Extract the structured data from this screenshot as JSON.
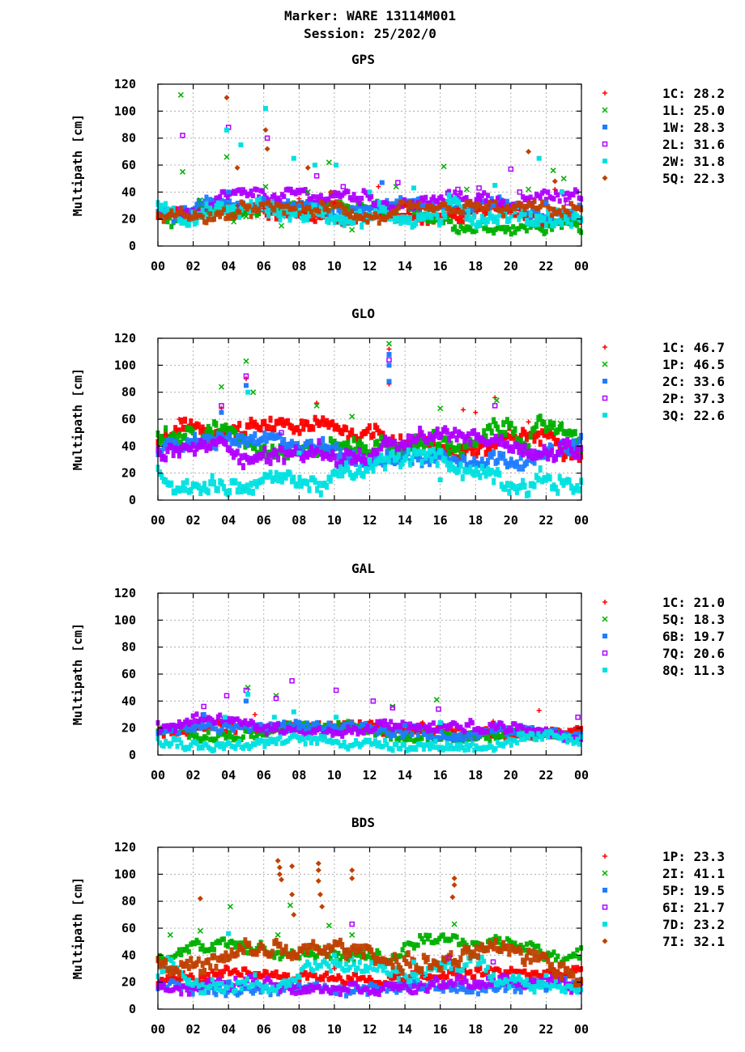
{
  "header": {
    "line1": "Marker: WARE 13114M001",
    "line2": "Session: 25/202/0"
  },
  "ylabel": "Multipath [cm]",
  "x_ticks": [
    "00",
    "02",
    "04",
    "06",
    "08",
    "10",
    "12",
    "14",
    "16",
    "18",
    "20",
    "22",
    "00"
  ],
  "y_ticks": [
    "0",
    "20",
    "40",
    "60",
    "80",
    "100",
    "120"
  ],
  "chart_data": [
    {
      "type": "scatter",
      "title": "GPS",
      "ylabel": "Multipath [cm]",
      "xlim": [
        0,
        24
      ],
      "ylim": [
        0,
        120
      ],
      "grid": true,
      "legend_position": "right",
      "series": [
        {
          "name": "1C",
          "label": "1C: 28.2",
          "color": "#ff0000",
          "marker": "plus",
          "rms": 28.2,
          "points": [
            [
              4.5,
              30
            ],
            [
              6.0,
              28
            ],
            [
              8.0,
              35
            ],
            [
              10.0,
              32
            ],
            [
              12.5,
              44
            ],
            [
              14.0,
              30
            ],
            [
              17.0,
              28
            ],
            [
              20.0,
              25
            ],
            [
              22.5,
              42
            ]
          ]
        },
        {
          "name": "1L",
          "label": "1L: 25.0",
          "color": "#00b000",
          "marker": "cross",
          "rms": 25.0,
          "points": [
            [
              1.3,
              112
            ],
            [
              1.4,
              55
            ],
            [
              2.4,
              34
            ],
            [
              3.9,
              66
            ],
            [
              4.3,
              18
            ],
            [
              5.0,
              22
            ],
            [
              6.1,
              44
            ],
            [
              7.0,
              15
            ],
            [
              8.5,
              40
            ],
            [
              9.7,
              62
            ],
            [
              11.0,
              12
            ],
            [
              13.5,
              44
            ],
            [
              16.2,
              59
            ],
            [
              17.5,
              42
            ],
            [
              21.0,
              42
            ],
            [
              22.4,
              56
            ],
            [
              23.0,
              50
            ]
          ]
        },
        {
          "name": "1W",
          "label": "1W: 28.3",
          "color": "#1e7cff",
          "marker": "square",
          "rms": 28.3,
          "points": [
            [
              4.0,
              40
            ],
            [
              6.0,
              35
            ],
            [
              8.0,
              30
            ],
            [
              12.7,
              47
            ],
            [
              15.0,
              30
            ],
            [
              19.0,
              30
            ],
            [
              22.0,
              32
            ]
          ]
        },
        {
          "name": "2L",
          "label": "2L: 31.6",
          "color": "#b000ff",
          "marker": "open-square",
          "rms": 31.6,
          "points": [
            [
              1.4,
              82
            ],
            [
              4.0,
              88
            ],
            [
              6.2,
              80
            ],
            [
              7.5,
              42
            ],
            [
              9.0,
              52
            ],
            [
              10.5,
              44
            ],
            [
              13.6,
              47
            ],
            [
              17.0,
              42
            ],
            [
              18.2,
              43
            ],
            [
              20.0,
              57
            ],
            [
              20.5,
              40
            ],
            [
              23.2,
              32
            ]
          ]
        },
        {
          "name": "2W",
          "label": "2W: 31.8",
          "color": "#00e0e0",
          "marker": "square",
          "rms": 31.8,
          "points": [
            [
              3.9,
              86
            ],
            [
              4.7,
              75
            ],
            [
              6.1,
              102
            ],
            [
              7.7,
              65
            ],
            [
              8.9,
              60
            ],
            [
              10.1,
              60
            ],
            [
              12.0,
              40
            ],
            [
              14.5,
              43
            ],
            [
              16.5,
              38
            ],
            [
              19.1,
              45
            ],
            [
              21.6,
              65
            ],
            [
              22.9,
              40
            ]
          ]
        },
        {
          "name": "5Q",
          "label": "5Q: 22.3",
          "color": "#c04000",
          "marker": "diamond",
          "rms": 22.3,
          "points": [
            [
              3.9,
              110
            ],
            [
              4.5,
              58
            ],
            [
              6.1,
              86
            ],
            [
              6.2,
              72
            ],
            [
              8.5,
              58
            ],
            [
              9.8,
              40
            ],
            [
              21.0,
              70
            ],
            [
              22.5,
              48
            ]
          ]
        }
      ]
    },
    {
      "type": "scatter",
      "title": "GLO",
      "ylabel": "Multipath [cm]",
      "xlim": [
        0,
        24
      ],
      "ylim": [
        0,
        120
      ],
      "grid": true,
      "legend_position": "right",
      "series": [
        {
          "name": "1C",
          "label": "1C: 46.7",
          "color": "#ff0000",
          "marker": "plus",
          "rms": 46.7,
          "points": [
            [
              0.5,
              48
            ],
            [
              1.2,
              60
            ],
            [
              3.6,
              68
            ],
            [
              5.0,
              90
            ],
            [
              7.0,
              56
            ],
            [
              9.0,
              72
            ],
            [
              13.1,
              86
            ],
            [
              13.1,
              112
            ],
            [
              17.3,
              67
            ],
            [
              18.0,
              65
            ],
            [
              19.1,
              76
            ],
            [
              21.0,
              58
            ]
          ]
        },
        {
          "name": "1P",
          "label": "1P: 46.5",
          "color": "#00b000",
          "marker": "cross",
          "rms": 46.5,
          "points": [
            [
              3.6,
              84
            ],
            [
              5.0,
              103
            ],
            [
              5.4,
              80
            ],
            [
              9.0,
              70
            ],
            [
              11.0,
              62
            ],
            [
              13.1,
              116
            ],
            [
              16.0,
              68
            ],
            [
              19.2,
              74
            ],
            [
              22.8,
              57
            ]
          ]
        },
        {
          "name": "2C",
          "label": "2C: 33.6",
          "color": "#1e7cff",
          "marker": "square",
          "rms": 33.6,
          "points": [
            [
              3.6,
              65
            ],
            [
              5.0,
              85
            ],
            [
              13.1,
              88
            ],
            [
              13.1,
              100
            ],
            [
              13.1,
              108
            ]
          ]
        },
        {
          "name": "2P",
          "label": "2P: 37.3",
          "color": "#b000ff",
          "marker": "open-square",
          "rms": 37.3,
          "points": [
            [
              3.6,
              70
            ],
            [
              5.0,
              92
            ],
            [
              7.0,
              50
            ],
            [
              13.1,
              104
            ],
            [
              19.1,
              70
            ]
          ]
        },
        {
          "name": "3Q",
          "label": "3Q: 22.6",
          "color": "#00e0e0",
          "marker": "square",
          "rms": 22.6,
          "points": [
            [
              5.1,
              80
            ],
            [
              8.0,
              35
            ],
            [
              12.0,
              30
            ],
            [
              16.0,
              15
            ]
          ]
        }
      ]
    },
    {
      "type": "scatter",
      "title": "GAL",
      "ylabel": "Multipath [cm]",
      "xlim": [
        0,
        24
      ],
      "ylim": [
        0,
        120
      ],
      "grid": true,
      "legend_position": "right",
      "series": [
        {
          "name": "1C",
          "label": "1C: 21.0",
          "color": "#ff0000",
          "marker": "plus",
          "rms": 21.0,
          "points": [
            [
              5.5,
              30
            ],
            [
              12.0,
              25
            ],
            [
              15.0,
              24
            ],
            [
              19.0,
              25
            ],
            [
              21.6,
              33
            ]
          ]
        },
        {
          "name": "5Q",
          "label": "5Q: 18.3",
          "color": "#00b000",
          "marker": "cross",
          "rms": 18.3,
          "points": [
            [
              5.1,
              50
            ],
            [
              6.7,
              44
            ],
            [
              13.3,
              36
            ],
            [
              15.8,
              41
            ]
          ]
        },
        {
          "name": "6B",
          "label": "6B: 19.7",
          "color": "#1e7cff",
          "marker": "square",
          "rms": 19.7,
          "points": [
            [
              2.6,
              30
            ],
            [
              5.0,
              40
            ],
            [
              8.0,
              20
            ],
            [
              14.0,
              22
            ]
          ]
        },
        {
          "name": "7Q",
          "label": "7Q: 20.6",
          "color": "#b000ff",
          "marker": "open-square",
          "rms": 20.6,
          "points": [
            [
              2.6,
              36
            ],
            [
              3.9,
              44
            ],
            [
              5.0,
              48
            ],
            [
              6.7,
              42
            ],
            [
              7.6,
              55
            ],
            [
              10.1,
              48
            ],
            [
              12.2,
              40
            ],
            [
              13.3,
              35
            ],
            [
              15.9,
              34
            ],
            [
              23.8,
              28
            ]
          ]
        },
        {
          "name": "8Q",
          "label": "8Q: 11.3",
          "color": "#00e0e0",
          "marker": "square",
          "rms": 11.3,
          "points": [
            [
              3.8,
              28
            ],
            [
              5.1,
              45
            ],
            [
              6.6,
              28
            ],
            [
              7.7,
              32
            ],
            [
              10.1,
              28
            ],
            [
              16.0,
              24
            ]
          ]
        }
      ]
    },
    {
      "type": "scatter",
      "title": "BDS",
      "ylabel": "Multipath [cm]",
      "xlim": [
        0,
        24
      ],
      "ylim": [
        0,
        120
      ],
      "grid": true,
      "legend_position": "right",
      "series": [
        {
          "name": "1P",
          "label": "1P: 23.3",
          "color": "#ff0000",
          "marker": "plus",
          "rms": 23.3,
          "points": [
            [
              6.0,
              25
            ],
            [
              10.0,
              30
            ],
            [
              15.0,
              25
            ]
          ]
        },
        {
          "name": "2I",
          "label": "2I: 41.1",
          "color": "#00b000",
          "marker": "cross",
          "rms": 41.1,
          "points": [
            [
              0.7,
              55
            ],
            [
              2.4,
              58
            ],
            [
              4.1,
              76
            ],
            [
              6.8,
              55
            ],
            [
              7.5,
              77
            ],
            [
              9.7,
              62
            ],
            [
              11.0,
              55
            ],
            [
              16.8,
              63
            ]
          ]
        },
        {
          "name": "5P",
          "label": "5P: 19.5",
          "color": "#1e7cff",
          "marker": "square",
          "rms": 19.5,
          "points": [
            [
              4.0,
              20
            ],
            [
              8.0,
              18
            ],
            [
              15.0,
              15
            ],
            [
              22.0,
              14
            ]
          ]
        },
        {
          "name": "6I",
          "label": "6I: 21.7",
          "color": "#b000ff",
          "marker": "open-square",
          "rms": 21.7,
          "points": [
            [
              11.0,
              63
            ],
            [
              16.5,
              38
            ],
            [
              19.0,
              35
            ]
          ]
        },
        {
          "name": "7D",
          "label": "7D: 23.2",
          "color": "#00e0e0",
          "marker": "square",
          "rms": 23.2,
          "points": [
            [
              4.0,
              56
            ],
            [
              10.0,
              40
            ],
            [
              14.5,
              35
            ],
            [
              22.0,
              25
            ]
          ]
        },
        {
          "name": "7I",
          "label": "7I: 32.1",
          "color": "#c04000",
          "marker": "diamond",
          "rms": 32.1,
          "points": [
            [
              2.4,
              82
            ],
            [
              6.8,
              110
            ],
            [
              6.9,
              105
            ],
            [
              6.9,
              100
            ],
            [
              7.0,
              96
            ],
            [
              7.6,
              106
            ],
            [
              7.6,
              85
            ],
            [
              7.7,
              70
            ],
            [
              9.1,
              108
            ],
            [
              9.1,
              103
            ],
            [
              9.1,
              95
            ],
            [
              9.2,
              85
            ],
            [
              9.3,
              76
            ],
            [
              11.0,
              103
            ],
            [
              11.0,
              97
            ],
            [
              16.8,
              97
            ],
            [
              16.8,
              92
            ],
            [
              16.7,
              83
            ]
          ]
        }
      ]
    }
  ]
}
